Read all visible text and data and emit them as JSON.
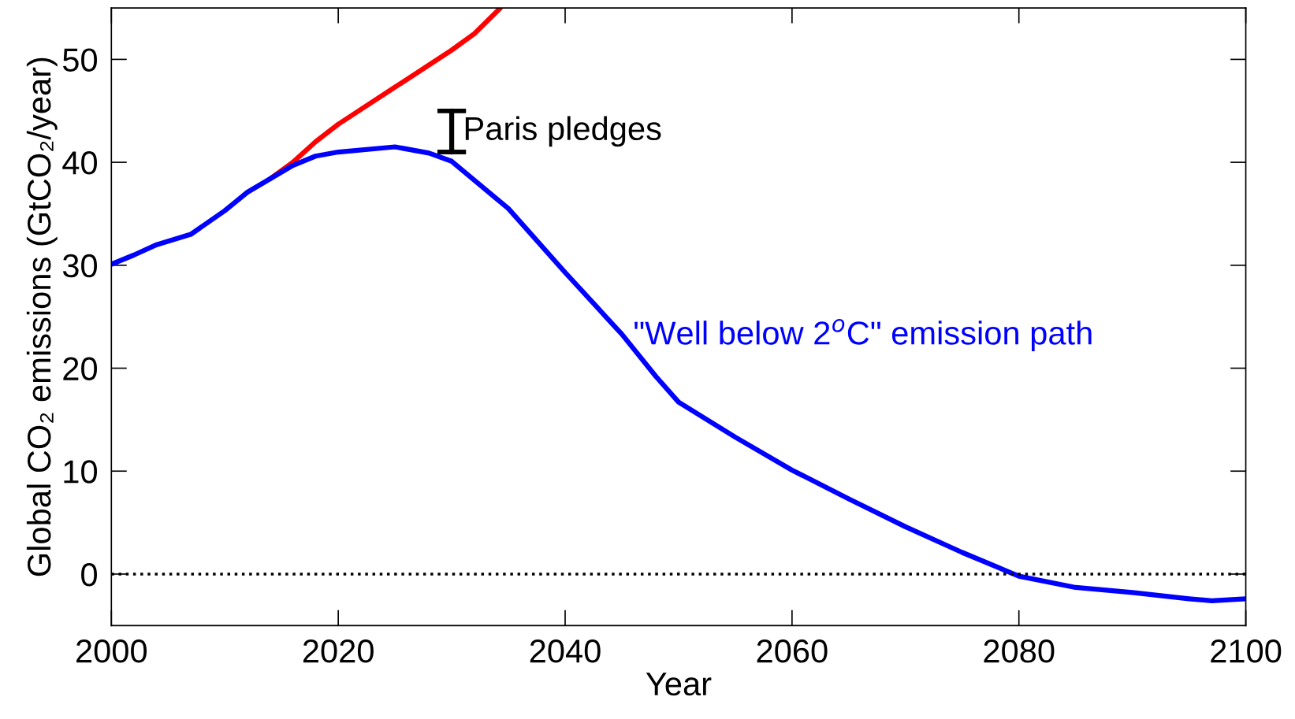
{
  "chart_data": {
    "type": "line",
    "xlabel": "Year",
    "ylabel": "Global CO₂ emissions (GtCO₂/year)",
    "xlim": [
      2000,
      2100
    ],
    "xticks": [
      2000,
      2020,
      2040,
      2060,
      2080,
      2100
    ],
    "ylim": [
      -5,
      55
    ],
    "yticks": [
      0,
      10,
      20,
      30,
      40,
      50
    ],
    "grid": false,
    "legend": false,
    "series": [
      {
        "color": "#ff0000",
        "x": [
          2014,
          2016,
          2018,
          2020,
          2025,
          2030,
          2032,
          2034.3
        ],
        "values": [
          38.4,
          40.0,
          42.0,
          43.7,
          47.3,
          50.9,
          52.5,
          55.0
        ]
      },
      {
        "name": "\"Well below 2$^{o}$C\" emission path",
        "color": "#0000ff",
        "x": [
          2000,
          2002,
          2004,
          2007,
          2010,
          2012,
          2014,
          2016,
          2018,
          2020,
          2025,
          2028,
          2030,
          2035,
          2040,
          2045,
          2048,
          2050,
          2055,
          2060,
          2065,
          2070,
          2075,
          2080,
          2085,
          2090,
          2095,
          2097,
          2100
        ],
        "values": [
          30.1,
          31.0,
          32.0,
          33.0,
          35.3,
          37.1,
          38.4,
          39.7,
          40.6,
          41.0,
          41.5,
          40.9,
          40.1,
          35.5,
          29.3,
          23.3,
          19.2,
          16.7,
          13.3,
          10.1,
          7.3,
          4.6,
          2.1,
          -0.2,
          -1.3,
          -1.8,
          -2.4,
          -2.6,
          -2.4
        ]
      },
      {
        "type": "line",
        "name": "Paris pledges",
        "color": "#000000",
        "x": [
          2030,
          2030
        ],
        "values": [
          41,
          45
        ],
        "errors": [
          0,
          0
        ]
      }
    ],
    "ref_lines": [
      {
        "axis": "y",
        "value": 0,
        "color": "#000000",
        "line_style": "dotted"
      }
    ]
  }
}
